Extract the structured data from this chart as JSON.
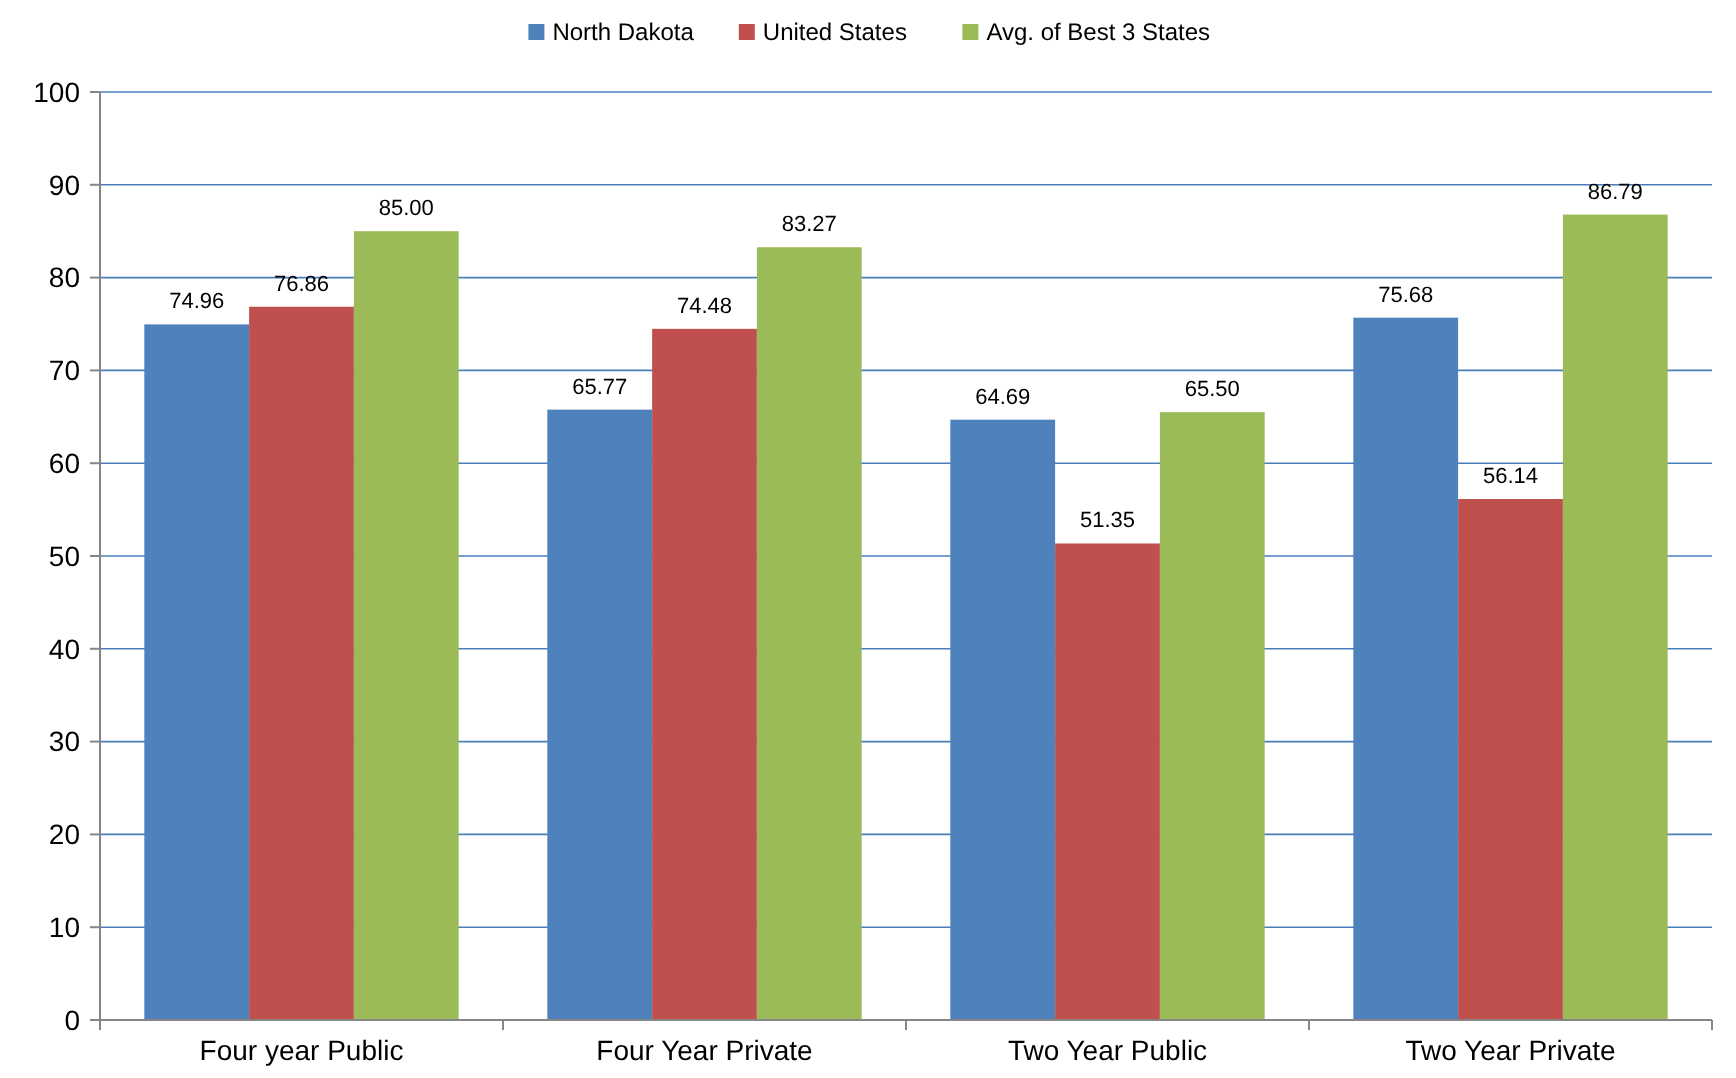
{
  "chart_data": {
    "type": "bar",
    "categories": [
      "Four year Public",
      "Four Year Private",
      "Two Year Public",
      "Two Year Private"
    ],
    "series": [
      {
        "name": "North Dakota",
        "color": "#4f81bd",
        "values": [
          74.96,
          65.77,
          64.69,
          75.68
        ],
        "value_labels": [
          "74.96",
          "65.77",
          "64.69",
          "75.68"
        ]
      },
      {
        "name": "United States",
        "color": "#c0504d",
        "values": [
          76.86,
          74.48,
          51.35,
          56.14
        ],
        "value_labels": [
          "76.86",
          "74.48",
          "51.35",
          "56.14"
        ]
      },
      {
        "name": "Avg. of Best 3 States",
        "color": "#9bbb59",
        "values": [
          85.0,
          83.27,
          65.5,
          86.79
        ],
        "value_labels": [
          "85.00",
          "83.27",
          "65.50",
          "86.79"
        ]
      }
    ],
    "ylim": [
      0,
      100
    ],
    "yticks": [
      0,
      10,
      20,
      30,
      40,
      50,
      60,
      70,
      80,
      90,
      100
    ],
    "grid": "y",
    "legend": "top"
  }
}
